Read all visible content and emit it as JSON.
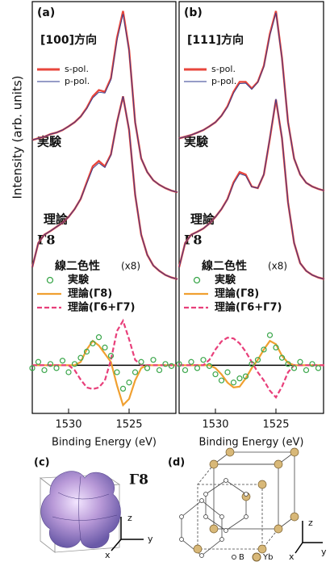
{
  "chart_data": [
    {
      "type": "line",
      "label": "(a)",
      "direction": "[100]方向",
      "y_label": "Intensity (arb. units)",
      "x_label": "Binding Energy (eV)",
      "xlim": [
        1533,
        1521
      ],
      "xticks": [
        1530,
        1525
      ],
      "ylim": [
        0,
        100
      ],
      "x": [
        1533,
        1532.5,
        1532,
        1531.5,
        1531,
        1530.5,
        1530,
        1529.5,
        1529,
        1528.5,
        1528,
        1527.5,
        1527,
        1526.5,
        1526,
        1525.5,
        1525,
        1524.5,
        1524,
        1523.5,
        1523,
        1522.5,
        1522,
        1521.5,
        1521
      ],
      "series": [
        {
          "name": "s-pol.",
          "color": "#e8463c"
        },
        {
          "name": "p-pol.",
          "color": "#2d3a8f"
        }
      ],
      "curves": [
        {
          "label": "実験",
          "values": [
            [
              66.4,
              66.8,
              67.2,
              67.8,
              68.2,
              68.8,
              69.7,
              70.7,
              72.1,
              74.2,
              77.0,
              78.5,
              78.1,
              81.4,
              91.2,
              97.7,
              88.3,
              70.7,
              61.9,
              58.6,
              56.6,
              55.5,
              54.7,
              54.1,
              53.7
            ],
            [
              66.4,
              66.8,
              67.2,
              67.8,
              68.2,
              68.8,
              69.7,
              70.7,
              72.1,
              74.0,
              76.6,
              78.0,
              77.8,
              81.0,
              90.6,
              97.0,
              88.0,
              70.7,
              61.9,
              58.6,
              56.6,
              55.5,
              54.7,
              54.1,
              53.7
            ]
          ]
        },
        {
          "label": "理論",
          "symbol": "Γ8",
          "values": [
            [
              35.5,
              41.4,
              43.4,
              44.3,
              45.3,
              46.3,
              47.7,
              49.6,
              52.1,
              56.1,
              60.0,
              61.3,
              60.0,
              62.9,
              70.7,
              77.0,
              68.8,
              53.1,
              43.4,
              38.5,
              35.9,
              34.6,
              33.6,
              33.0,
              32.6
            ],
            [
              35.5,
              41.4,
              43.4,
              44.3,
              45.3,
              46.3,
              47.7,
              49.6,
              52.1,
              55.8,
              59.5,
              60.8,
              59.7,
              62.7,
              70.6,
              77.0,
              68.9,
              53.2,
              43.4,
              38.5,
              35.9,
              34.6,
              33.6,
              33.0,
              32.6
            ]
          ]
        }
      ],
      "dichroism": {
        "title": "線二色性",
        "factor": "(x8)",
        "zero": 11.7,
        "experiment": {
          "name": "実験",
          "color": "#3aa64a",
          "x": [
            1533,
            1532.5,
            1532,
            1531.5,
            1531,
            1530.5,
            1530,
            1529.5,
            1529,
            1528.5,
            1528,
            1527.5,
            1527,
            1526.5,
            1526,
            1525.5,
            1525,
            1524.5,
            1524,
            1523.5,
            1523,
            1522.5,
            1522,
            1521.5
          ],
          "values": [
            11,
            12.5,
            10.5,
            12,
            11,
            12.8,
            10,
            12,
            13.5,
            15,
            17,
            18.5,
            16,
            14,
            10,
            6,
            7.5,
            10,
            12.5,
            11,
            13,
            10.5,
            12,
            11.5
          ]
        },
        "theory": [
          {
            "name": "理論(Γ8)",
            "color": "#f0a030",
            "dash": false,
            "values": [
              11.7,
              11.7,
              11.7,
              11.7,
              11.7,
              11.7,
              11.7,
              11.7,
              12.5,
              15.5,
              17.6,
              16.5,
              14.5,
              12.5,
              6.8,
              2.0,
              3.5,
              8.0,
              11.0,
              11.7,
              11.7,
              11.7,
              11.7,
              11.7,
              11.7
            ]
          },
          {
            "name": "理論(Γ6+Γ7)",
            "color": "#e83f7a",
            "dash": true,
            "values": [
              11.7,
              11.7,
              11.7,
              11.7,
              11.7,
              11.7,
              11.7,
              10.5,
              8.2,
              6.3,
              5.9,
              6.3,
              8.0,
              13.0,
              20.0,
              22.5,
              18.0,
              13.0,
              11.7,
              11.7,
              11.7,
              11.7,
              11.7,
              11.7,
              11.7
            ]
          }
        ]
      }
    },
    {
      "type": "line",
      "label": "(b)",
      "direction": "[111]方向",
      "x_label": "Binding Energy (eV)",
      "xlim": [
        1533,
        1521
      ],
      "xticks": [
        1530,
        1525
      ],
      "ylim": [
        0,
        100
      ],
      "x": [
        1533,
        1532.5,
        1532,
        1531.5,
        1531,
        1530.5,
        1530,
        1529.5,
        1529,
        1528.5,
        1528,
        1527.5,
        1527,
        1526.5,
        1526,
        1525.5,
        1525,
        1524.5,
        1524,
        1523.5,
        1523,
        1522.5,
        1522,
        1521.5,
        1521
      ],
      "series": [
        {
          "name": "s-pol.",
          "color": "#e8463c"
        },
        {
          "name": "p-pol.",
          "color": "#2d3a8f"
        }
      ],
      "curves": [
        {
          "label": "実験",
          "values": [
            [
              66.8,
              67.2,
              67.6,
              68.2,
              68.8,
              69.7,
              70.7,
              72.3,
              74.6,
              78.1,
              80.5,
              80.5,
              78.9,
              80.5,
              84.4,
              92.2,
              97.7,
              86.3,
              70.7,
              61.9,
              58.0,
              56.0,
              55.1,
              54.5,
              54.1
            ],
            [
              66.8,
              67.2,
              67.6,
              68.2,
              68.8,
              69.7,
              70.7,
              72.3,
              74.4,
              77.8,
              80.1,
              80.2,
              78.7,
              80.4,
              84.2,
              91.8,
              97.3,
              86.1,
              70.7,
              61.9,
              58.0,
              56.0,
              55.1,
              54.5,
              54.1
            ]
          ]
        },
        {
          "label": "理論",
          "symbol": "Γ8",
          "values": [
            [
              35.5,
              41.4,
              43.4,
              44.1,
              44.9,
              46.1,
              47.7,
              49.6,
              52.1,
              56.1,
              58.6,
              58.0,
              55.1,
              54.7,
              58.0,
              66.8,
              76.2,
              66.8,
              51.2,
              41.4,
              36.5,
              34.6,
              33.6,
              33.0,
              32.6
            ],
            [
              35.5,
              41.4,
              43.4,
              44.1,
              44.9,
              46.1,
              47.7,
              49.6,
              52.0,
              55.8,
              58.2,
              57.7,
              55.0,
              54.7,
              58.1,
              67.0,
              76.4,
              66.9,
              51.2,
              41.4,
              36.5,
              34.6,
              33.6,
              33.0,
              32.6
            ]
          ]
        }
      ],
      "dichroism": {
        "title": "線二色性",
        "factor": "(x8)",
        "zero": 11.7,
        "experiment": {
          "name": "実験",
          "color": "#3aa64a",
          "x": [
            1533,
            1532.5,
            1532,
            1531.5,
            1531,
            1530.5,
            1530,
            1529.5,
            1529,
            1528.5,
            1528,
            1527.5,
            1527,
            1526.5,
            1526,
            1525.5,
            1525,
            1524.5,
            1524,
            1523.5,
            1523,
            1522.5,
            1522,
            1521.5
          ],
          "values": [
            12,
            10.5,
            12.5,
            11,
            13,
            11.5,
            9.5,
            8,
            10,
            7.5,
            8.5,
            9,
            12,
            13,
            15.5,
            19,
            16,
            13.5,
            12,
            11,
            12.5,
            10.5,
            12,
            11
          ]
        },
        "theory": [
          {
            "name": "理論(Γ8)",
            "color": "#f0a030",
            "dash": false,
            "values": [
              11.7,
              11.7,
              11.7,
              11.7,
              11.7,
              11.7,
              11.0,
              9.5,
              7.5,
              6.3,
              6.5,
              8.5,
              11.0,
              13.0,
              15.5,
              17.6,
              16.8,
              14.0,
              12.3,
              11.7,
              11.7,
              11.7,
              11.7,
              11.7,
              11.7
            ]
          },
          {
            "name": "理論(Γ6+Γ7)",
            "color": "#e83f7a",
            "dash": true,
            "values": [
              11.7,
              11.7,
              11.7,
              11.7,
              11.7,
              13.0,
              15.5,
              17.5,
              18.4,
              18.2,
              17.0,
              15.0,
              12.5,
              10.0,
              8.0,
              5.5,
              3.9,
              6.5,
              10.0,
              11.7,
              11.7,
              11.7,
              11.7,
              11.7,
              11.7
            ]
          }
        ]
      }
    }
  ],
  "illustrations": {
    "c": {
      "label": "(c)",
      "symbol": "Γ8",
      "axes": [
        "z",
        "y",
        "x"
      ]
    },
    "d": {
      "label": "(d)",
      "axes": [
        "z",
        "y",
        "x"
      ],
      "legend": [
        "B",
        "Yb"
      ]
    }
  }
}
